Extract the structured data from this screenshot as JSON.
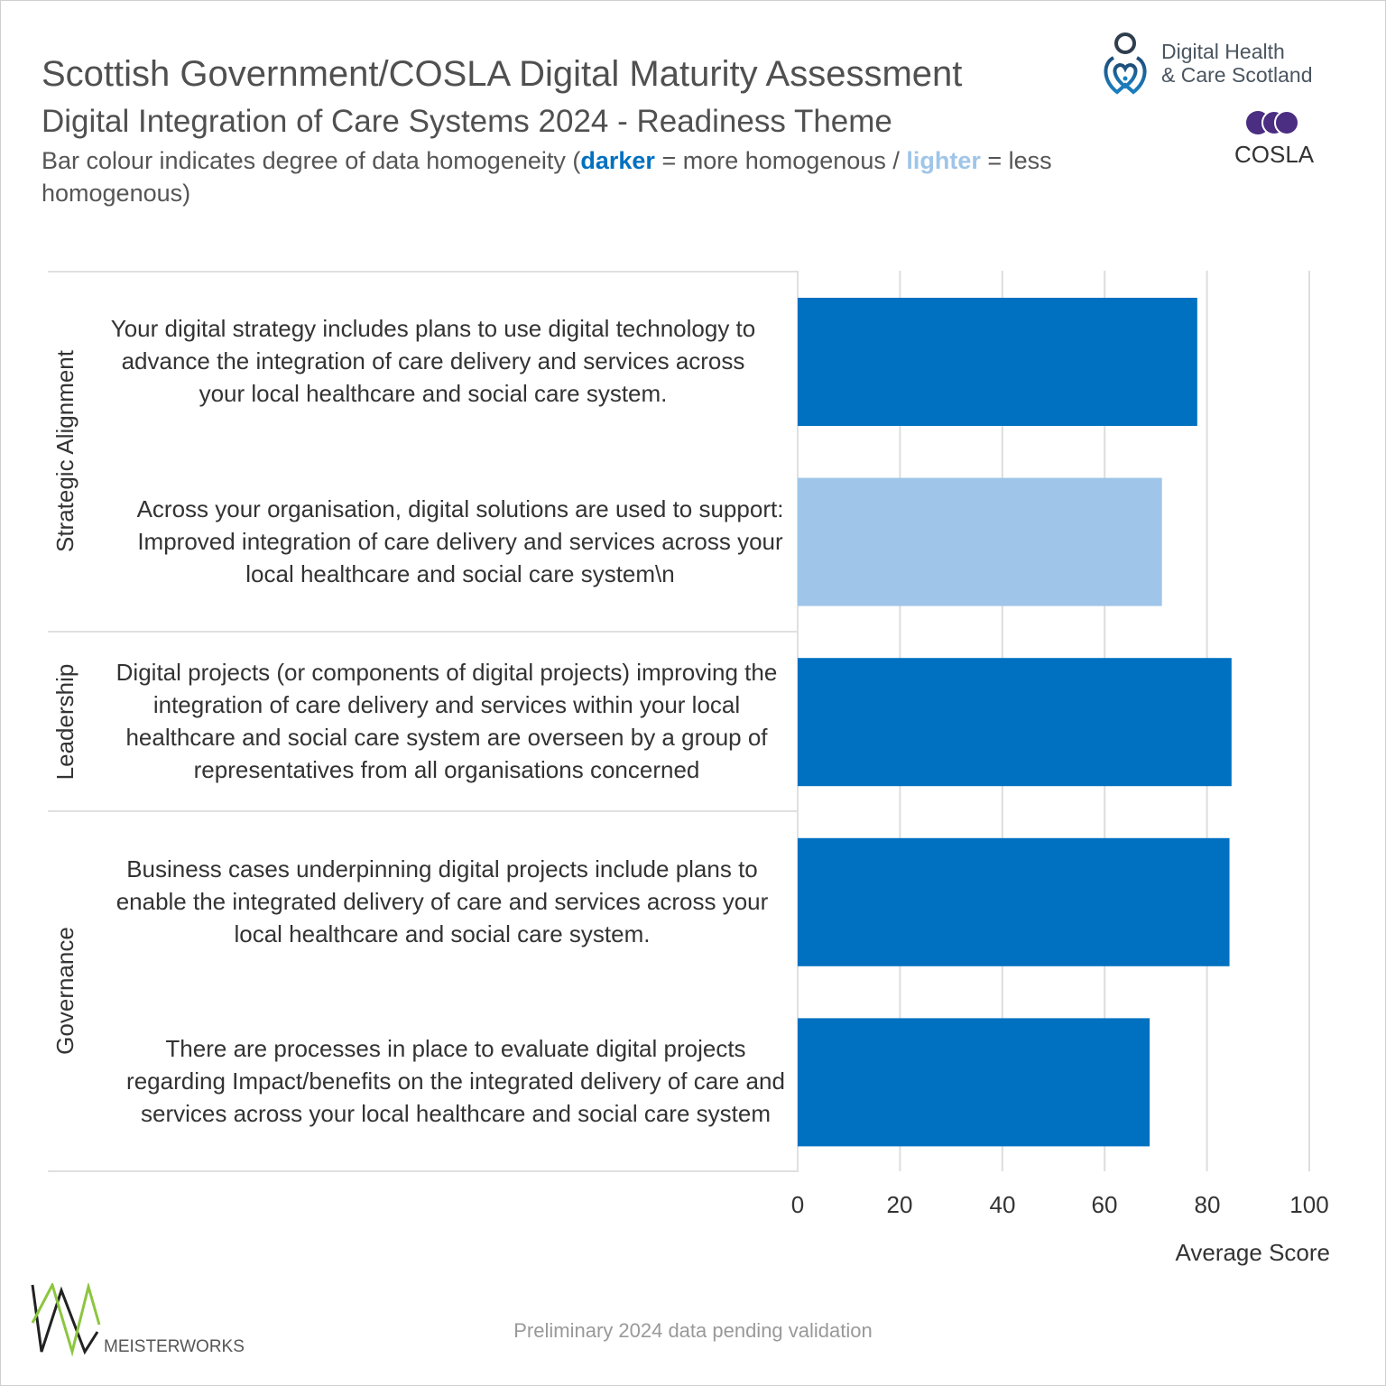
{
  "header": {
    "title": "Scottish Government/COSLA Digital Maturity Assessment",
    "subtitle": "Digital Integration of Care Systems 2024 - Readiness Theme",
    "desc_part1": "Bar colour indicates degree of data homogeneity (",
    "desc_darker": "darker",
    "desc_part2": " = more homogenous / ",
    "desc_lighter": "lighter",
    "desc_part3": " = less homogenous)"
  },
  "logos": {
    "dhcs_line1": "Digital Health",
    "dhcs_line2": "& Care Scotland",
    "cosla": "COSLA",
    "meisterworks": "MEISTERWORKS"
  },
  "footer": "Preliminary 2024 data pending validation",
  "colors": {
    "darker": "#0070c0",
    "lighter": "#9fc5e8",
    "grid": "#dddddd"
  },
  "chart_data": {
    "type": "bar",
    "orientation": "horizontal",
    "xlabel": "Average Score",
    "xlim": [
      0,
      100
    ],
    "xticks": [
      "0",
      "20",
      "40",
      "60",
      "80",
      "100"
    ],
    "grid": true,
    "groups": [
      "Strategic Alignment",
      "Leadership",
      "Governance"
    ],
    "categories": [
      "Your digital strategy includes plans to use digital technology to advance the integration of care delivery and services across your local healthcare and social care system.",
      "Across your organisation, digital solutions are used to support: Improved integration of care delivery and services across your local healthcare and social care system\\n",
      "Digital projects (or components of digital projects) improving the integration of care delivery and services within your local healthcare and social care system are overseen by a group of representatives from all organisations concerned",
      "Business cases underpinning digital projects include plans to enable the integrated delivery of care and services across your local healthcare and social care system.",
      "There are processes in place to evaluate digital projects regarding Impact/benefits on the integrated delivery of care and services across your local healthcare and social care system"
    ],
    "category_groups": [
      "Strategic Alignment",
      "Strategic Alignment",
      "Leadership",
      "Governance",
      "Governance"
    ],
    "values": [
      78.1,
      71.2,
      84.8,
      84.4,
      68.8
    ],
    "homogeneity": [
      "darker",
      "lighter",
      "darker",
      "darker",
      "darker"
    ]
  }
}
